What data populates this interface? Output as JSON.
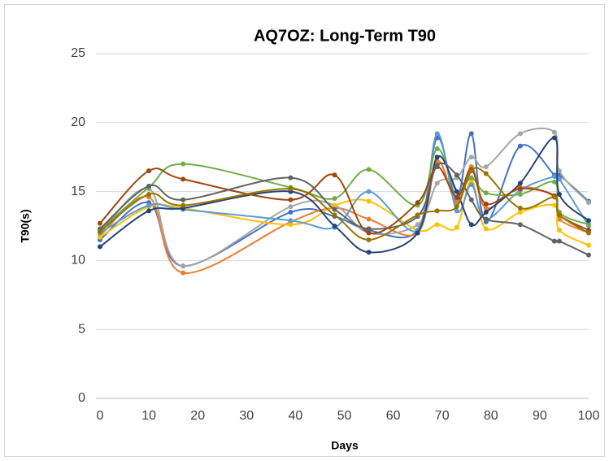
{
  "chart_data": {
    "type": "line",
    "title": "AQ7OZ: Long-Term T90",
    "x_label": "Days",
    "y_label": "T90(s)",
    "x": [
      0,
      10,
      17,
      39,
      48,
      55,
      65,
      69,
      73,
      76,
      79,
      86,
      93,
      94,
      100
    ],
    "xlim": [
      0,
      100
    ],
    "xticks": [
      0,
      10,
      20,
      30,
      40,
      50,
      60,
      70,
      80,
      90,
      100
    ],
    "ylim": [
      0,
      25
    ],
    "yticks": [
      0,
      5,
      10,
      15,
      20,
      25
    ],
    "grid": true,
    "smooth": true,
    "series": [
      {
        "color": "#4472c4",
        "values": [
          11.5,
          14.2,
          9.6,
          13.5,
          13.2,
          12.2,
          12.2,
          18.9,
          14.5,
          19.2,
          12.8,
          18.3,
          16.2,
          16.2,
          14.3
        ]
      },
      {
        "color": "#ed7d31",
        "values": [
          11.8,
          14.6,
          9.1,
          12.8,
          13.8,
          13.0,
          12.0,
          17.2,
          14.2,
          16.8,
          13.8,
          15.3,
          14.6,
          13.0,
          12.0
        ]
      },
      {
        "color": "#a5a5a5",
        "values": [
          12.0,
          15.2,
          9.6,
          13.9,
          14.0,
          12.0,
          12.6,
          15.6,
          16.0,
          17.5,
          16.8,
          19.2,
          19.3,
          16.5,
          14.2
        ]
      },
      {
        "color": "#ffc000",
        "values": [
          11.7,
          13.9,
          13.8,
          12.6,
          14.0,
          14.3,
          12.2,
          12.6,
          12.4,
          15.8,
          12.3,
          13.5,
          14.0,
          12.2,
          11.1
        ]
      },
      {
        "color": "#5b9bd5",
        "values": [
          12.0,
          14.0,
          13.7,
          12.9,
          12.4,
          15.0,
          12.2,
          19.2,
          13.6,
          15.5,
          13.0,
          15.1,
          16.1,
          15.9,
          12.5
        ]
      },
      {
        "color": "#70ad47",
        "values": [
          12.2,
          15.3,
          17.0,
          15.3,
          14.5,
          16.6,
          14.0,
          18.1,
          15.0,
          16.0,
          14.9,
          14.8,
          15.7,
          13.5,
          12.6
        ]
      },
      {
        "color": "#264478",
        "values": [
          11.0,
          13.6,
          13.8,
          15.0,
          12.5,
          10.6,
          12.0,
          17.5,
          15.0,
          12.6,
          13.5,
          15.6,
          18.9,
          14.8,
          12.9
        ]
      },
      {
        "color": "#9e480e",
        "values": [
          12.7,
          16.5,
          15.9,
          14.4,
          16.2,
          12.0,
          14.2,
          16.8,
          14.6,
          16.6,
          14.1,
          15.2,
          14.7,
          13.3,
          12.2
        ]
      },
      {
        "color": "#636363",
        "values": [
          12.3,
          15.4,
          14.4,
          16.0,
          13.7,
          12.3,
          13.2,
          16.9,
          16.2,
          14.4,
          13.0,
          12.6,
          11.4,
          11.4,
          10.4
        ]
      },
      {
        "color": "#997300",
        "values": [
          12.1,
          14.8,
          14.0,
          15.2,
          13.3,
          11.5,
          13.3,
          13.6,
          13.9,
          16.5,
          16.3,
          13.8,
          14.6,
          13.3,
          12.0
        ]
      }
    ]
  }
}
